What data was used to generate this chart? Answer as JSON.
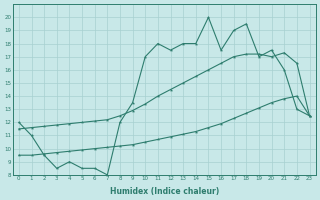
{
  "line1_x": [
    0,
    1,
    2,
    3,
    4,
    5,
    6,
    7,
    8,
    9,
    10,
    11,
    12,
    13,
    14,
    15,
    16,
    17,
    18,
    19,
    20,
    21,
    22,
    23
  ],
  "line1_y": [
    12,
    11,
    9.5,
    8.5,
    9,
    8.5,
    8.5,
    8,
    12,
    13.5,
    17,
    18,
    17.5,
    18,
    18,
    20,
    17.5,
    19,
    19.5,
    17,
    17.5,
    16,
    13,
    12.5
  ],
  "line2_x": [
    0,
    1,
    2,
    3,
    4,
    5,
    6,
    7,
    8,
    9,
    10,
    11,
    12,
    13,
    14,
    15,
    16,
    17,
    18,
    19,
    20,
    21,
    22,
    23
  ],
  "line2_y": [
    9.5,
    9.5,
    9.6,
    9.7,
    9.8,
    9.9,
    10.0,
    10.1,
    10.2,
    10.3,
    10.5,
    10.7,
    10.9,
    11.1,
    11.3,
    11.6,
    11.9,
    12.3,
    12.7,
    13.1,
    13.5,
    13.8,
    14.0,
    12.5
  ],
  "line3_x": [
    0,
    1,
    2,
    3,
    4,
    5,
    6,
    7,
    8,
    9,
    10,
    11,
    12,
    13,
    14,
    15,
    16,
    17,
    18,
    19,
    20,
    21,
    22,
    23
  ],
  "line3_y": [
    11.5,
    11.6,
    11.7,
    11.8,
    11.9,
    12.0,
    12.1,
    12.2,
    12.5,
    12.9,
    13.4,
    14.0,
    14.5,
    15.0,
    15.5,
    16.0,
    16.5,
    17.0,
    17.2,
    17.2,
    17.0,
    17.3,
    16.5,
    12.5
  ],
  "line_color": "#2e7d6e",
  "bg_color": "#c8e8e8",
  "grid_color": "#a8d0d0",
  "xlabel": "Humidex (Indice chaleur)",
  "ylim": [
    8,
    21
  ],
  "xlim": [
    -0.5,
    23.5
  ],
  "yticks": [
    8,
    9,
    10,
    11,
    12,
    13,
    14,
    15,
    16,
    17,
    18,
    19,
    20
  ],
  "xticks": [
    0,
    1,
    2,
    3,
    4,
    5,
    6,
    7,
    8,
    9,
    10,
    11,
    12,
    13,
    14,
    15,
    16,
    17,
    18,
    19,
    20,
    21,
    22,
    23
  ]
}
